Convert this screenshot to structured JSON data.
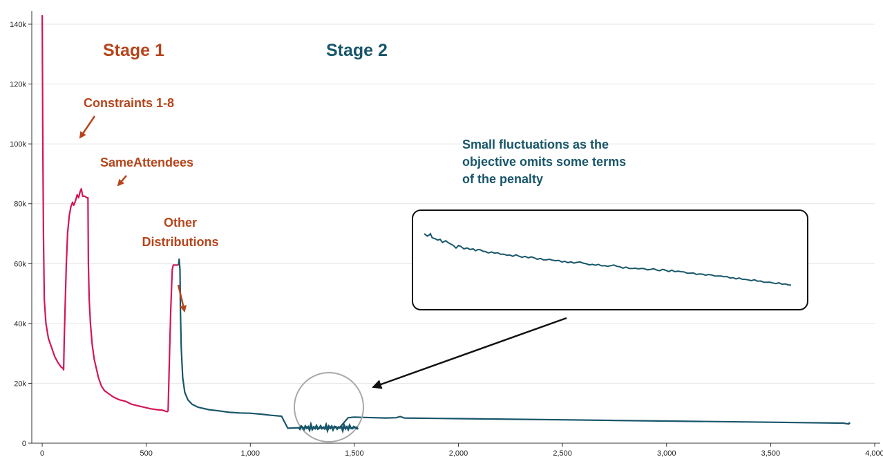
{
  "chart_data": {
    "type": "line",
    "title": "",
    "xlabel": "",
    "ylabel": "",
    "xlim": [
      -50,
      4000
    ],
    "ylim": [
      0,
      143000
    ],
    "grid": true,
    "x_ticks": [
      {
        "value": 0,
        "label": "0"
      },
      {
        "value": 500,
        "label": "500"
      },
      {
        "value": 1000,
        "label": "1,000"
      },
      {
        "value": 1500,
        "label": "1,500"
      },
      {
        "value": 2000,
        "label": "2,000"
      },
      {
        "value": 2500,
        "label": "2,500"
      },
      {
        "value": 3000,
        "label": "3,000"
      },
      {
        "value": 3500,
        "label": "3,500"
      },
      {
        "value": 4000,
        "label": "4,000"
      }
    ],
    "y_ticks": [
      {
        "value": 0,
        "label": "0"
      },
      {
        "value": 20000,
        "label": "20k"
      },
      {
        "value": 40000,
        "label": "40k"
      },
      {
        "value": 60000,
        "label": "60k"
      },
      {
        "value": 80000,
        "label": "80k"
      },
      {
        "value": 100000,
        "label": "100k"
      },
      {
        "value": 120000,
        "label": "120k"
      },
      {
        "value": 140000,
        "label": "140k"
      }
    ],
    "series": [
      {
        "color": "#d4145a",
        "points": [
          [
            0,
            143000
          ],
          [
            3,
            100000
          ],
          [
            6,
            70000
          ],
          [
            10,
            48000
          ],
          [
            18,
            40000
          ],
          [
            30,
            35000
          ],
          [
            45,
            32000
          ],
          [
            60,
            29000
          ],
          [
            75,
            27000
          ],
          [
            90,
            25500
          ],
          [
            100,
            25000
          ],
          [
            103,
            24500
          ],
          [
            106,
            35000
          ],
          [
            110,
            45000
          ],
          [
            116,
            60000
          ],
          [
            122,
            70000
          ],
          [
            130,
            76000
          ],
          [
            138,
            79000
          ],
          [
            146,
            80500
          ],
          [
            152,
            79500
          ],
          [
            160,
            81000
          ],
          [
            168,
            83000
          ],
          [
            175,
            82000
          ],
          [
            182,
            84000
          ],
          [
            188,
            85000
          ],
          [
            195,
            82500
          ],
          [
            205,
            82500
          ],
          [
            215,
            82000
          ],
          [
            220,
            82000
          ],
          [
            222,
            60000
          ],
          [
            226,
            48000
          ],
          [
            232,
            40000
          ],
          [
            240,
            33000
          ],
          [
            250,
            28000
          ],
          [
            260,
            25000
          ],
          [
            270,
            22000
          ],
          [
            285,
            19000
          ],
          [
            300,
            17500
          ],
          [
            320,
            16500
          ],
          [
            340,
            15500
          ],
          [
            370,
            14500
          ],
          [
            400,
            14000
          ],
          [
            430,
            13000
          ],
          [
            460,
            12500
          ],
          [
            490,
            12000
          ],
          [
            520,
            11500
          ],
          [
            550,
            11200
          ],
          [
            580,
            11000
          ],
          [
            600,
            10500
          ],
          [
            605,
            10800
          ],
          [
            612,
            30000
          ],
          [
            618,
            45000
          ],
          [
            625,
            58000
          ],
          [
            630,
            59500
          ],
          [
            645,
            59500
          ],
          [
            655,
            59500
          ]
        ]
      },
      {
        "color": "#18566a",
        "points": [
          [
            655,
            59500
          ],
          [
            658,
            61500
          ],
          [
            662,
            58000
          ],
          [
            664,
            45000
          ],
          [
            668,
            32000
          ],
          [
            675,
            22000
          ],
          [
            685,
            17000
          ],
          [
            700,
            14500
          ],
          [
            720,
            13000
          ],
          [
            750,
            12000
          ],
          [
            800,
            11200
          ],
          [
            850,
            10800
          ],
          [
            900,
            10300
          ],
          [
            950,
            10100
          ],
          [
            1000,
            10000
          ],
          [
            1050,
            9700
          ],
          [
            1100,
            9300
          ],
          [
            1150,
            9000
          ],
          [
            1180,
            5000
          ],
          [
            1250,
            5200
          ],
          [
            1350,
            5100
          ],
          [
            1430,
            5300
          ],
          [
            1470,
            8500
          ],
          [
            1500,
            8700
          ],
          [
            1550,
            8600
          ],
          [
            1600,
            8500
          ],
          [
            1650,
            8400
          ],
          [
            1700,
            8500
          ],
          [
            1720,
            8900
          ],
          [
            1740,
            8400
          ],
          [
            2000,
            8200
          ],
          [
            2500,
            7800
          ],
          [
            3000,
            7400
          ],
          [
            3500,
            7000
          ],
          [
            3850,
            6700
          ],
          [
            3875,
            6400
          ],
          [
            3878,
            6800
          ],
          [
            3880,
            6400
          ]
        ]
      }
    ],
    "inset_series": [
      [
        0,
        70
      ],
      [
        5,
        68.5
      ],
      [
        8,
        69.2
      ],
      [
        10,
        70
      ],
      [
        13,
        67.5
      ],
      [
        18,
        66.8
      ],
      [
        22,
        66
      ],
      [
        26,
        66.5
      ],
      [
        30,
        64.5
      ],
      [
        35,
        65.6
      ],
      [
        40,
        64.2
      ],
      [
        45,
        63.2
      ],
      [
        48,
        62.5
      ],
      [
        52,
        61
      ],
      [
        56,
        62.6
      ],
      [
        60,
        62
      ],
      [
        65,
        60.5
      ],
      [
        70,
        61.1
      ],
      [
        75,
        60.1
      ],
      [
        80,
        60.5
      ],
      [
        84,
        59.3
      ],
      [
        88,
        60.1
      ],
      [
        92,
        59.9
      ],
      [
        96,
        59
      ],
      [
        100,
        58.8
      ],
      [
        105,
        58
      ],
      [
        110,
        58.6
      ],
      [
        115,
        57.8
      ],
      [
        120,
        58.1
      ],
      [
        125,
        57.1
      ],
      [
        130,
        57.2
      ],
      [
        135,
        56.5
      ],
      [
        140,
        56.7
      ],
      [
        145,
        55.8
      ],
      [
        150,
        56.8
      ],
      [
        155,
        55.9
      ],
      [
        160,
        55.2
      ],
      [
        165,
        55.8
      ],
      [
        170,
        54.9
      ],
      [
        175,
        55.5
      ],
      [
        180,
        54.9
      ],
      [
        185,
        54
      ],
      [
        190,
        54.5
      ],
      [
        195,
        53.6
      ],
      [
        200,
        53.7
      ],
      [
        205,
        54
      ],
      [
        210,
        53.4
      ],
      [
        215,
        53.1
      ],
      [
        220,
        53.3
      ],
      [
        225,
        52.3
      ],
      [
        230,
        52.7
      ],
      [
        235,
        51.9
      ],
      [
        240,
        52.4
      ],
      [
        245,
        51.6
      ],
      [
        250,
        52.1
      ],
      [
        255,
        52.3
      ],
      [
        260,
        51.6
      ],
      [
        265,
        51.2
      ],
      [
        270,
        50.5
      ],
      [
        275,
        50.8
      ],
      [
        280,
        50.3
      ],
      [
        285,
        50.8
      ],
      [
        290,
        49.9
      ],
      [
        295,
        50
      ],
      [
        300,
        49.6
      ],
      [
        305,
        50
      ],
      [
        310,
        50.4
      ],
      [
        315,
        49.6
      ],
      [
        320,
        49.3
      ],
      [
        325,
        48.4
      ],
      [
        330,
        49.1
      ],
      [
        335,
        48.3
      ],
      [
        340,
        48.2
      ],
      [
        345,
        48.4
      ],
      [
        350,
        48
      ],
      [
        355,
        48.3
      ],
      [
        360,
        48.1
      ],
      [
        365,
        47.4
      ],
      [
        370,
        47.6
      ],
      [
        375,
        48.1
      ],
      [
        380,
        47.3
      ],
      [
        385,
        46.8
      ],
      [
        390,
        47.7
      ],
      [
        395,
        47.1
      ],
      [
        400,
        46.3
      ],
      [
        405,
        47.2
      ],
      [
        410,
        46.2
      ],
      [
        415,
        46.6
      ],
      [
        420,
        46.2
      ],
      [
        425,
        46.1
      ],
      [
        430,
        45.3
      ],
      [
        435,
        45.3
      ],
      [
        440,
        45.5
      ],
      [
        445,
        44.5
      ],
      [
        450,
        44.8
      ],
      [
        455,
        44.7
      ],
      [
        460,
        44
      ],
      [
        465,
        44.5
      ],
      [
        470,
        44.2
      ],
      [
        475,
        43.6
      ],
      [
        480,
        43.5
      ],
      [
        485,
        43.6
      ],
      [
        490,
        43.1
      ],
      [
        495,
        43.2
      ],
      [
        500,
        42.3
      ],
      [
        505,
        42.5
      ],
      [
        510,
        41.7
      ],
      [
        515,
        42.3
      ],
      [
        520,
        41.5
      ],
      [
        525,
        41.4
      ],
      [
        530,
        41.1
      ],
      [
        535,
        40.6
      ],
      [
        540,
        41.2
      ],
      [
        545,
        40.3
      ],
      [
        550,
        40.4
      ],
      [
        555,
        39.7
      ],
      [
        560,
        39.6
      ],
      [
        565,
        39.7
      ],
      [
        570,
        39.2
      ],
      [
        575,
        38.8
      ],
      [
        580,
        39.3
      ],
      [
        585,
        38.4
      ],
      [
        590,
        38.6
      ],
      [
        595,
        38
      ],
      [
        600,
        37.8
      ]
    ],
    "annotations": {
      "stage1": "Stage 1",
      "stage2": "Stage 2",
      "constraints": "Constraints 1-8",
      "sameattendees": "SameAttendees",
      "other_line1": "Other",
      "other_line2": "Distributions",
      "fluct_line1": "Small fluctuations as the",
      "fluct_line2": "objective omits some terms",
      "fluct_line3": "of the penalty"
    },
    "colors": {
      "stage1": "#d4145a",
      "stage2": "#18566a",
      "label_red": "#b5451b",
      "grid": "#e6e6e6",
      "axis": "#333333",
      "inset_border": "#111111",
      "magnifier": "#a8a8a8",
      "arrow": "#111111"
    }
  }
}
